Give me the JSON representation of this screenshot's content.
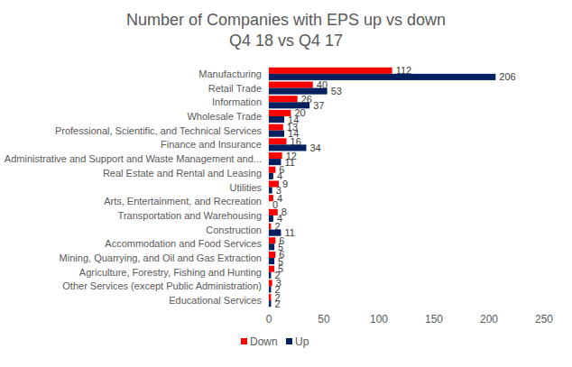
{
  "chart_data": {
    "type": "bar",
    "orientation": "horizontal",
    "title": "Number of Companies with EPS up vs down",
    "subtitle": "Q4 18 vs Q4 17",
    "categories": [
      "Manufacturing",
      "Retail Trade",
      "Information",
      "Wholesale Trade",
      "Professional, Scientific, and Technical Services",
      "Finance and Insurance",
      "Administrative and Support and Waste Management and...",
      "Real Estate and Rental and Leasing",
      "Utilities",
      "Arts, Entertainment, and Recreation",
      "Transportation and Warehousing",
      "Construction",
      "Accommodation and Food Services",
      "Mining, Quarrying, and Oil and Gas Extraction",
      "Agriculture, Forestry, Fishing and Hunting",
      "Other Services (except Public Administration)",
      "Educational Services"
    ],
    "series": [
      {
        "name": "Down",
        "color": "#ff0000",
        "values": [
          112,
          40,
          26,
          20,
          13,
          16,
          12,
          6,
          9,
          4,
          8,
          2,
          6,
          6,
          5,
          3,
          2
        ]
      },
      {
        "name": "Up",
        "color": "#002060",
        "values": [
          206,
          53,
          37,
          14,
          14,
          34,
          11,
          4,
          3,
          0,
          4,
          11,
          5,
          5,
          2,
          2,
          2
        ]
      }
    ],
    "xlim": [
      0,
      250
    ],
    "xticks": [
      0,
      50,
      100,
      150,
      200,
      250
    ],
    "grid": false,
    "legend": "bottom",
    "data_labels": true
  }
}
